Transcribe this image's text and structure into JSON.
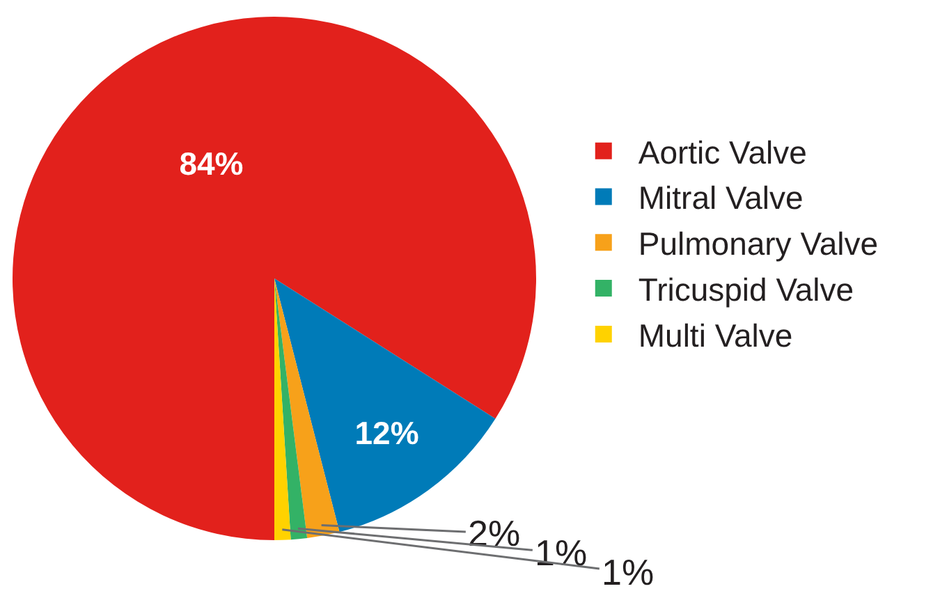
{
  "chart_data": {
    "type": "pie",
    "categories": [
      "Aortic Valve",
      "Mitral Valve",
      "Pulmonary Valve",
      "Tricuspid Valve",
      "Multi Valve"
    ],
    "values": [
      84,
      12,
      2,
      1,
      1
    ],
    "colors": [
      "#e2211c",
      "#007bb8",
      "#f7a11a",
      "#33b266",
      "#ffd200"
    ],
    "value_labels": [
      "84%",
      "12%",
      "2%",
      "1%",
      "1%"
    ],
    "legend": "right"
  }
}
